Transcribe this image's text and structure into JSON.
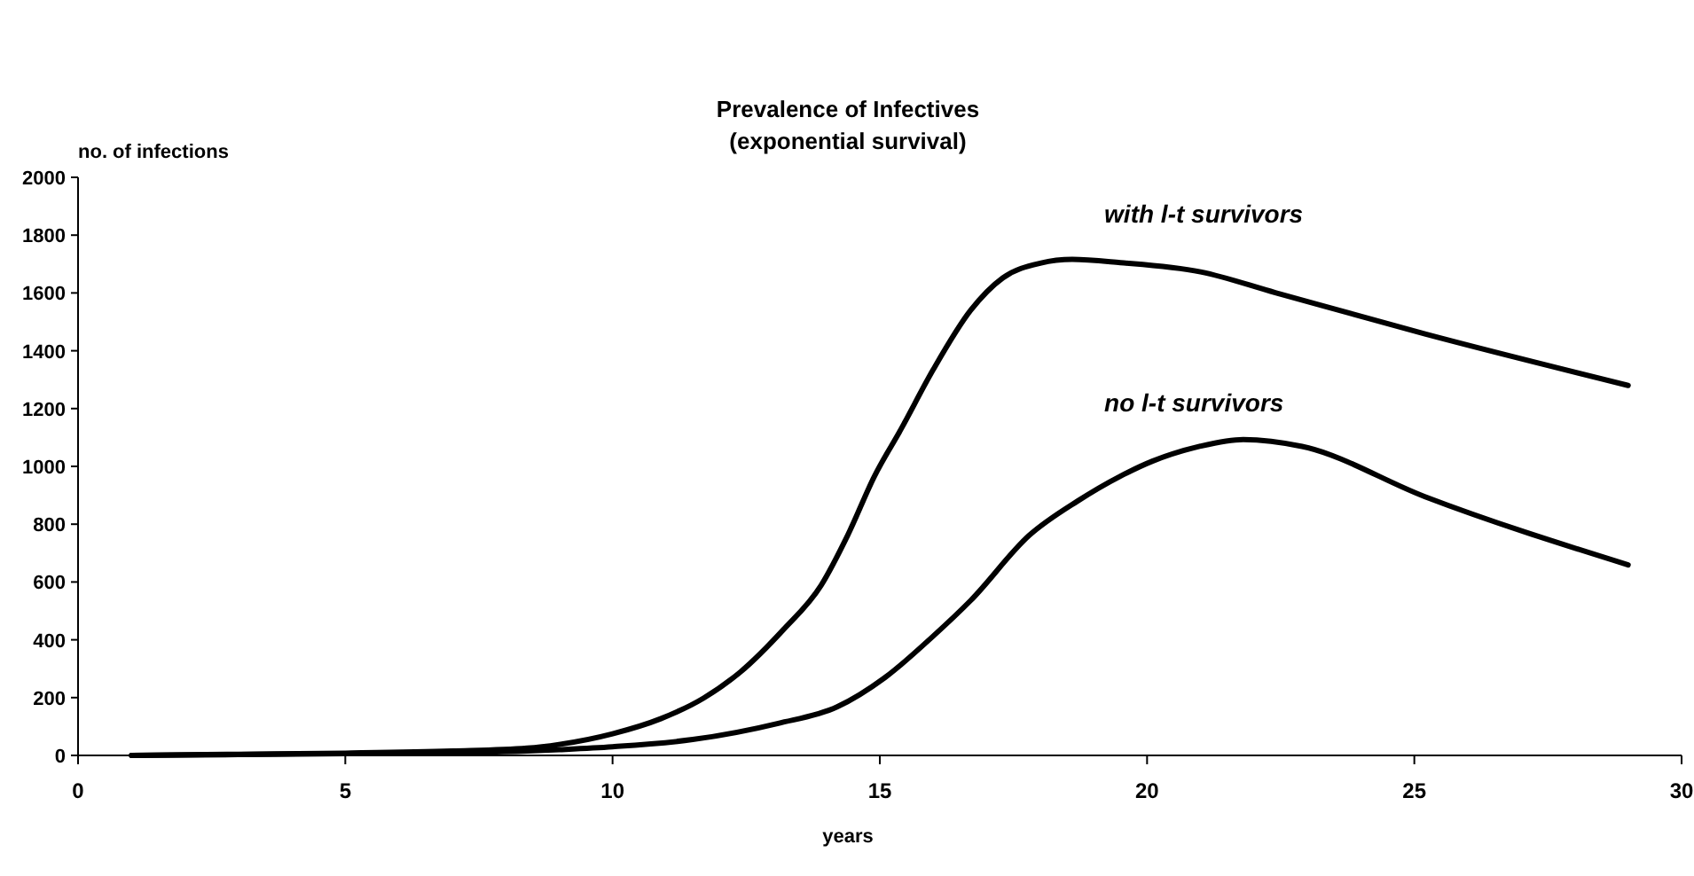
{
  "chart_data": {
    "type": "line",
    "title": "Prevalence of Infectives\n(exponential survival)",
    "xlabel": "years",
    "ylabel": "no. of infections",
    "xlim": [
      0,
      30
    ],
    "xticks": [
      0,
      5,
      10,
      15,
      20,
      25,
      30
    ],
    "ylim": [
      0,
      2000
    ],
    "yticks": [
      0,
      200,
      400,
      600,
      800,
      1000,
      1200,
      1400,
      1600,
      1800,
      2000
    ],
    "grid": false,
    "marker": "none",
    "line_style": "solid",
    "series": [
      {
        "name": "with l-t survivors",
        "color": "#000000",
        "x": [
          1,
          3,
          5,
          7,
          8.4,
          9,
          10,
          10.9,
          11.7,
          12.4,
          13.2,
          13.9,
          14.4,
          14.9,
          15.4,
          16,
          16.7,
          17.3,
          18,
          18.6,
          19.5,
          21,
          22.4,
          25.2,
          29
        ],
        "values": [
          0,
          4,
          8,
          15,
          25,
          38,
          75,
          127,
          198,
          290,
          436,
          588,
          762,
          966,
          1130,
          1335,
          1540,
          1652,
          1703,
          1716,
          1705,
          1673,
          1601,
          1458,
          1280
        ]
      },
      {
        "name": "no l-t survivors",
        "color": "#000000",
        "x": [
          1,
          3,
          5,
          7,
          8.4,
          9,
          10,
          11.5,
          13.1,
          14.2,
          15.1,
          16,
          16.7,
          17.8,
          18.7,
          19.5,
          20.1,
          21,
          21.8,
          22.9,
          25.2,
          29
        ],
        "values": [
          0,
          3,
          6,
          10,
          15,
          20,
          30,
          55,
          111,
          168,
          270,
          413,
          536,
          762,
          880,
          966,
          1018,
          1070,
          1093,
          1069,
          895,
          659
        ]
      }
    ]
  }
}
